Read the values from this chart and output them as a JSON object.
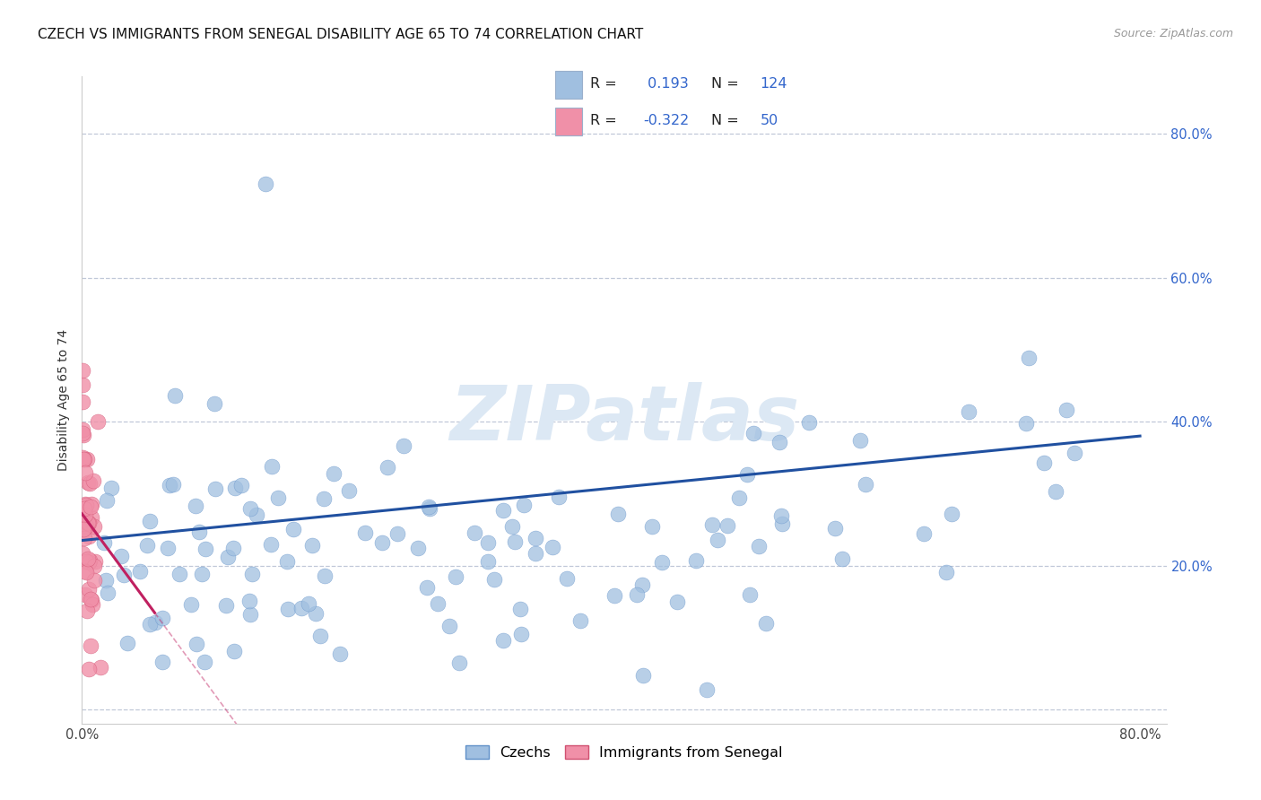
{
  "title": "CZECH VS IMMIGRANTS FROM SENEGAL DISABILITY AGE 65 TO 74 CORRELATION CHART",
  "source": "Source: ZipAtlas.com",
  "ylabel": "Disability Age 65 to 74",
  "xlim": [
    0.0,
    0.82
  ],
  "ylim": [
    -0.02,
    0.88
  ],
  "xticks": [
    0.0,
    0.1,
    0.2,
    0.3,
    0.4,
    0.5,
    0.6,
    0.7,
    0.8
  ],
  "yticks": [
    0.0,
    0.2,
    0.4,
    0.6,
    0.8
  ],
  "xticklabels_show": [
    "0.0%",
    "80.0%"
  ],
  "yticklabels_right": [
    "20.0%",
    "40.0%",
    "60.0%",
    "80.0%"
  ],
  "r_czech": 0.193,
  "n_czech": 124,
  "r_senegal": -0.322,
  "n_senegal": 50,
  "czech_color": "#a0bfe0",
  "czech_color_edge": "#6090c8",
  "senegal_color": "#f090a8",
  "senegal_color_edge": "#d05070",
  "czech_line_color": "#2050a0",
  "senegal_line_color": "#c02060",
  "background_color": "#ffffff",
  "watermark_text": "ZIPatlas",
  "watermark_color": "#dce8f4",
  "title_fontsize": 11,
  "axis_label_fontsize": 10,
  "tick_fontsize": 10.5,
  "legend_czech_label": "Czechs",
  "legend_senegal_label": "Immigrants from Senegal",
  "legend_box_color": "#a0bfe0",
  "legend_box_color2": "#f090a8"
}
